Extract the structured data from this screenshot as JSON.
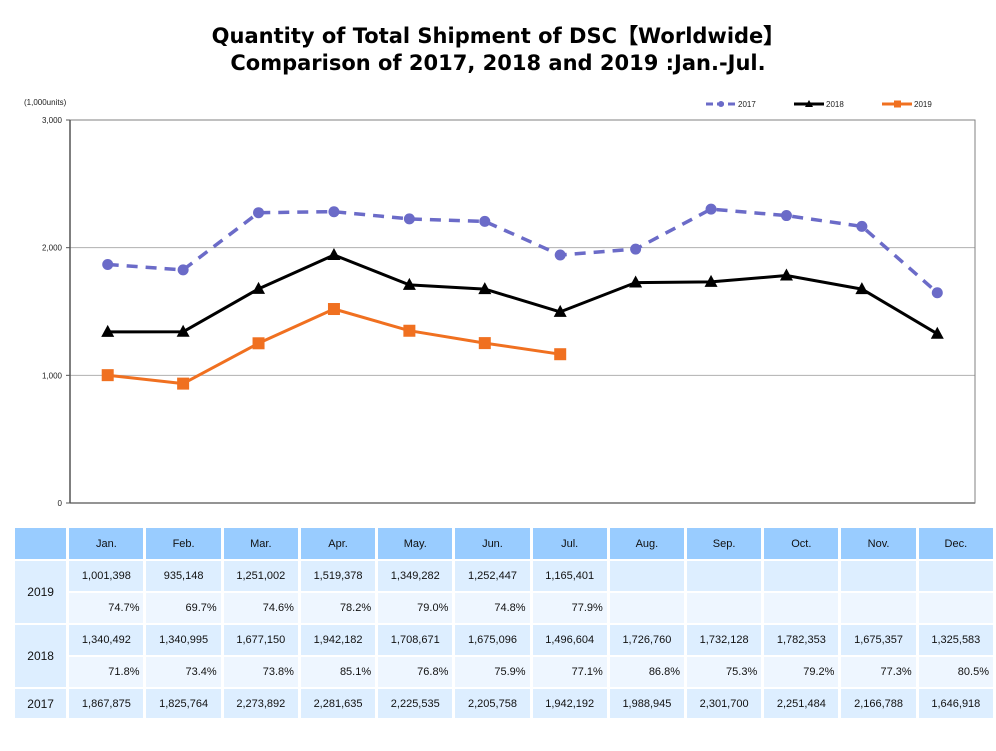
{
  "title": {
    "line1": "Quantity of Total Shipment of DSC【Worldwide】",
    "line2": "Comparison of 2017, 2018 and 2019 :Jan.-Jul."
  },
  "chart_data": {
    "type": "line",
    "title": "Quantity of Total Shipment of DSC【Worldwide】 Comparison of 2017, 2018 and 2019 :Jan.-Jul.",
    "unit_label": "(1,000units)",
    "xlabel": "",
    "ylabel": "(1,000units)",
    "ylim": [
      0,
      3000
    ],
    "yticks": [
      0,
      1000,
      2000,
      3000
    ],
    "ytick_labels": [
      "0",
      "1,000",
      "2,000",
      "3,000"
    ],
    "grid": true,
    "legend_position": "top-right",
    "categories": [
      "Jan.",
      "Feb.",
      "Mar.",
      "Apr.",
      "May.",
      "Jun.",
      "Jul.",
      "Aug.",
      "Sep.",
      "Oct.",
      "Nov.",
      "Dec."
    ],
    "series": [
      {
        "name": "2017",
        "color": "#6b6bc8",
        "line_style": "dashed",
        "marker": "circle",
        "values": [
          1867.875,
          1825.764,
          2273.892,
          2281.635,
          2225.535,
          2205.758,
          1942.192,
          1988.945,
          2301.7,
          2251.484,
          2166.788,
          1646.918
        ]
      },
      {
        "name": "2018",
        "color": "#000000",
        "line_style": "solid",
        "marker": "triangle",
        "values": [
          1340.492,
          1340.995,
          1677.15,
          1942.182,
          1708.671,
          1675.096,
          1496.604,
          1726.76,
          1732.128,
          1782.353,
          1675.357,
          1325.583
        ]
      },
      {
        "name": "2019",
        "color": "#f07020",
        "line_style": "solid",
        "marker": "square",
        "values": [
          1001.398,
          935.148,
          1251.002,
          1519.378,
          1349.282,
          1252.447,
          1165.401,
          null,
          null,
          null,
          null,
          null
        ]
      }
    ]
  },
  "table": {
    "months": [
      "Jan.",
      "Feb.",
      "Mar.",
      "Apr.",
      "May.",
      "Jun.",
      "Jul.",
      "Aug.",
      "Sep.",
      "Oct.",
      "Nov.",
      "Dec."
    ],
    "rows": {
      "y2019": {
        "label": "2019",
        "values": [
          "1,001,398",
          "935,148",
          "1,251,002",
          "1,519,378",
          "1,349,282",
          "1,252,447",
          "1,165,401",
          "",
          "",
          "",
          "",
          ""
        ],
        "ratios": [
          "74.7%",
          "69.7%",
          "74.6%",
          "78.2%",
          "79.0%",
          "74.8%",
          "77.9%",
          "",
          "",
          "",
          "",
          ""
        ]
      },
      "y2018": {
        "label": "2018",
        "values": [
          "1,340,492",
          "1,340,995",
          "1,677,150",
          "1,942,182",
          "1,708,671",
          "1,675,096",
          "1,496,604",
          "1,726,760",
          "1,732,128",
          "1,782,353",
          "1,675,357",
          "1,325,583"
        ],
        "ratios": [
          "71.8%",
          "73.4%",
          "73.8%",
          "85.1%",
          "76.8%",
          "75.9%",
          "77.1%",
          "86.8%",
          "75.3%",
          "79.2%",
          "77.3%",
          "80.5%"
        ]
      },
      "y2017": {
        "label": "2017",
        "values": [
          "1,867,875",
          "1,825,764",
          "2,273,892",
          "2,281,635",
          "2,225,535",
          "2,205,758",
          "1,942,192",
          "1,988,945",
          "2,301,700",
          "2,251,484",
          "2,166,788",
          "1,646,918"
        ]
      }
    }
  }
}
